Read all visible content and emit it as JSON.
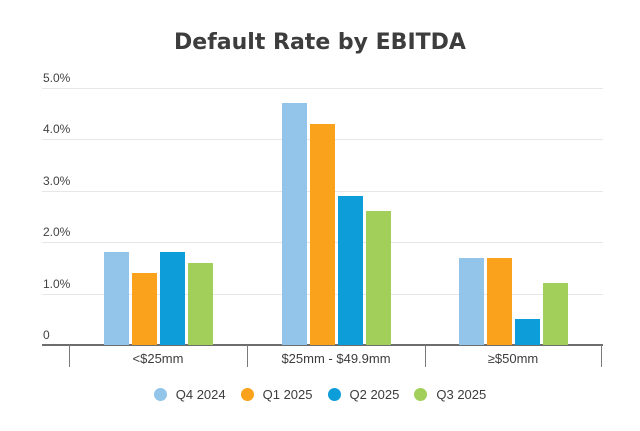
{
  "title": "Default Rate by EBITDA",
  "chart_data": {
    "type": "bar",
    "title": "Default Rate by EBITDA",
    "categories": [
      "<$25mm",
      "$25mm - $49.9mm",
      "≥$50mm"
    ],
    "series": [
      {
        "name": "Q4 2024",
        "color": "#92c5e9",
        "values": [
          1.8,
          4.7,
          1.7
        ]
      },
      {
        "name": "Q1 2025",
        "color": "#faa21c",
        "values": [
          1.4,
          4.3,
          1.7
        ]
      },
      {
        "name": "Q2 2025",
        "color": "#0d9dd9",
        "values": [
          1.8,
          2.9,
          0.5
        ]
      },
      {
        "name": "Q3 2025",
        "color": "#a1cf5a",
        "values": [
          1.6,
          2.6,
          1.2
        ]
      }
    ],
    "y_ticks": [
      {
        "label": "5.0%",
        "value": 5.0
      },
      {
        "label": "4.0%",
        "value": 4.0
      },
      {
        "label": "3.0%",
        "value": 3.0
      },
      {
        "label": "2.0%",
        "value": 2.0
      },
      {
        "label": "1.0%",
        "value": 1.0
      },
      {
        "label": "0",
        "value": 0.0
      }
    ],
    "ylim": [
      0,
      5
    ],
    "grid": true,
    "legend_position": "bottom"
  }
}
